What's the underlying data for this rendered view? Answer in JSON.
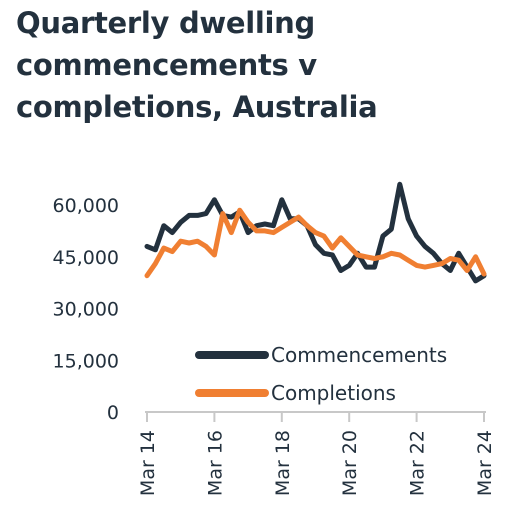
{
  "chart_data": {
    "type": "line",
    "title": "Quarterly dwelling commencements v completions, Australia",
    "xlabel": "",
    "ylabel": "",
    "x_ticks": [
      "Mar 14",
      "Mar 16",
      "Mar 18",
      "Mar 20",
      "Mar 22",
      "Mar 24"
    ],
    "y_ticks": [
      "60,000",
      "45,000",
      "30,000",
      "15,000",
      "0"
    ],
    "ylim": [
      0,
      60000
    ],
    "legend_position": "bottom-right",
    "grid": false,
    "x": [
      "Mar 14",
      "Jun 14",
      "Sep 14",
      "Dec 14",
      "Mar 15",
      "Jun 15",
      "Sep 15",
      "Dec 15",
      "Mar 16",
      "Jun 16",
      "Sep 16",
      "Dec 16",
      "Mar 17",
      "Jun 17",
      "Sep 17",
      "Dec 17",
      "Mar 18",
      "Jun 18",
      "Sep 18",
      "Dec 18",
      "Mar 19",
      "Jun 19",
      "Sep 19",
      "Dec 19",
      "Mar 20",
      "Jun 20",
      "Sep 20",
      "Dec 20",
      "Mar 21",
      "Jun 21",
      "Sep 21",
      "Dec 21",
      "Mar 22",
      "Jun 22",
      "Sep 22",
      "Dec 22",
      "Mar 23",
      "Jun 23",
      "Sep 23",
      "Dec 23",
      "Mar 24"
    ],
    "series": [
      {
        "name": "Commencements",
        "color": "#23313e",
        "values": [
          48000,
          47000,
          54000,
          52000,
          55000,
          57000,
          57000,
          57500,
          61500,
          57000,
          56500,
          58000,
          52000,
          54000,
          54500,
          54000,
          61500,
          56000,
          56000,
          54000,
          48500,
          46000,
          45500,
          41000,
          42500,
          46000,
          42000,
          42000,
          51000,
          53000,
          66000,
          56000,
          51000,
          48000,
          46000,
          43000,
          41000,
          46000,
          42000,
          38000,
          39500
        ]
      },
      {
        "name": "Completions",
        "color": "#f07f32",
        "values": [
          39500,
          43000,
          47500,
          46500,
          49500,
          49000,
          49500,
          48000,
          45500,
          57500,
          52000,
          58500,
          55000,
          52500,
          52500,
          52000,
          53500,
          55000,
          56500,
          54000,
          52000,
          51000,
          47500,
          50500,
          48000,
          45500,
          45000,
          44500,
          45000,
          46000,
          45500,
          44000,
          42500,
          42000,
          42500,
          43000,
          44500,
          44000,
          41000,
          45000,
          40000
        ]
      }
    ]
  }
}
